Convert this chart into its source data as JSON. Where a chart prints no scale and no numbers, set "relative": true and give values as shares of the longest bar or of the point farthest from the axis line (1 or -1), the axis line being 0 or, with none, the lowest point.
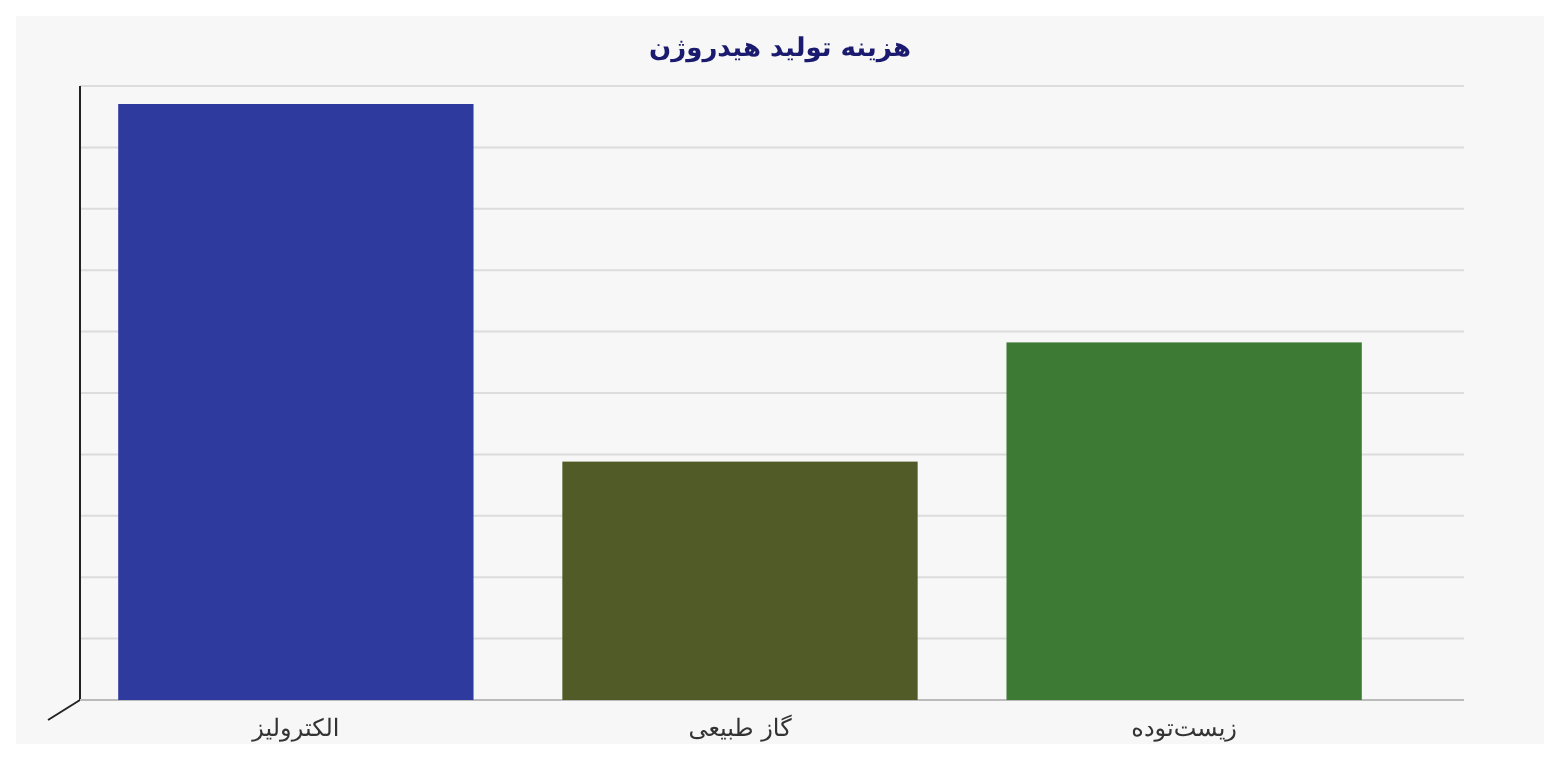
{
  "chart_data": {
    "type": "bar",
    "title": "هزینه تولید هیدروژن",
    "relative": true,
    "categories": [
      "الکترولیز",
      "گاز طبیعی",
      "زیست‌توده"
    ],
    "values": [
      1,
      0.4,
      0.6
    ],
    "colors": [
      "#2e3a9e",
      "#515b27",
      "#3d7a33"
    ],
    "grid": "y"
  }
}
